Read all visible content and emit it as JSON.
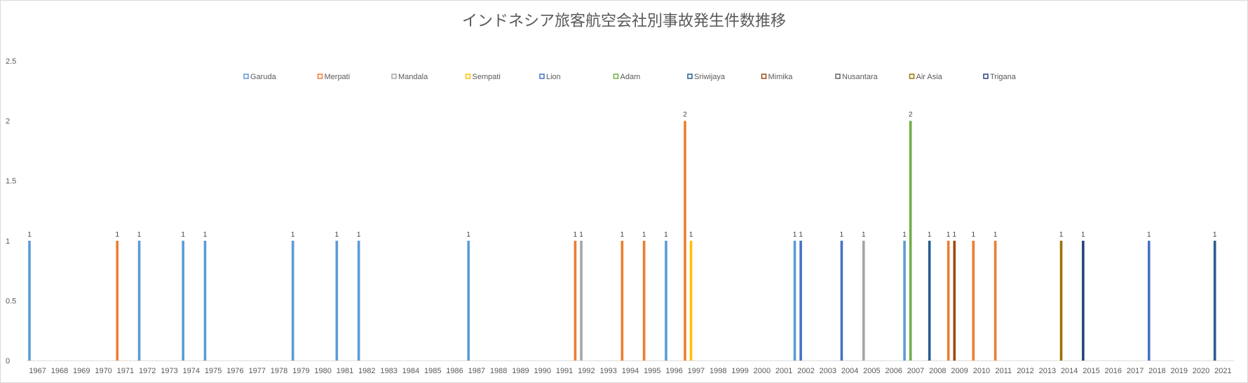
{
  "chart_data": {
    "type": "bar",
    "title": "インドネシア旅客航空会社別事故発生件数推移",
    "categories": [
      "1967",
      "1968",
      "1969",
      "1970",
      "1971",
      "1972",
      "1973",
      "1974",
      "1975",
      "1976",
      "1977",
      "1978",
      "1979",
      "1980",
      "1981",
      "1982",
      "1983",
      "1984",
      "1985",
      "1986",
      "1987",
      "1988",
      "1989",
      "1990",
      "1991",
      "1992",
      "1993",
      "1994",
      "1995",
      "1996",
      "1997",
      "1998",
      "1999",
      "2000",
      "2001",
      "2002",
      "2003",
      "2004",
      "2005",
      "2006",
      "2007",
      "2008",
      "2009",
      "2010",
      "2011",
      "2012",
      "2013",
      "2014",
      "2015",
      "2016",
      "2017",
      "2018",
      "2019",
      "2020",
      "2021"
    ],
    "ylim": [
      0,
      2.5
    ],
    "yticks": [
      "0",
      "0.5",
      "1",
      "1.5",
      "2",
      "2.5"
    ],
    "grid": false,
    "legend_position": "top",
    "series": [
      {
        "name": "Garuda",
        "color": "#5B9BD5",
        "points": [
          [
            "1967",
            1
          ],
          [
            "1972",
            1
          ],
          [
            "1974",
            1
          ],
          [
            "1975",
            1
          ],
          [
            "1979",
            1
          ],
          [
            "1981",
            1
          ],
          [
            "1982",
            1
          ],
          [
            "1987",
            1
          ],
          [
            "1996",
            1
          ],
          [
            "2002",
            1
          ],
          [
            "2007",
            1
          ]
        ]
      },
      {
        "name": "Merpati",
        "color": "#ED7D31",
        "points": [
          [
            "1971",
            1
          ],
          [
            "1992",
            1
          ],
          [
            "1994",
            1
          ],
          [
            "1995",
            1
          ],
          [
            "1997",
            2
          ],
          [
            "2009",
            1
          ],
          [
            "2010",
            1
          ],
          [
            "2011",
            1
          ]
        ]
      },
      {
        "name": "Mandala",
        "color": "#A5A5A5",
        "points": [
          [
            "1992",
            1
          ],
          [
            "2005",
            1
          ]
        ]
      },
      {
        "name": "Sempati",
        "color": "#FFC000",
        "points": [
          [
            "1997",
            1
          ]
        ]
      },
      {
        "name": "Lion",
        "color": "#4472C4",
        "points": [
          [
            "2002",
            1
          ],
          [
            "2004",
            1
          ],
          [
            "2018",
            1
          ]
        ]
      },
      {
        "name": "Adam",
        "color": "#70AD47",
        "points": [
          [
            "2007",
            2
          ]
        ]
      },
      {
        "name": "Sriwijaya",
        "color": "#255E91",
        "points": [
          [
            "2008",
            1
          ],
          [
            "2021",
            1
          ]
        ]
      },
      {
        "name": "Mimika",
        "color": "#9E480E",
        "points": [
          [
            "2009",
            1
          ]
        ]
      },
      {
        "name": "Nusantara",
        "color": "#636363",
        "points": []
      },
      {
        "name": "Air Asia",
        "color": "#997300",
        "points": [
          [
            "2014",
            1
          ]
        ]
      },
      {
        "name": "Trigana",
        "color": "#264478",
        "points": [
          [
            "2015",
            1
          ]
        ]
      }
    ]
  }
}
